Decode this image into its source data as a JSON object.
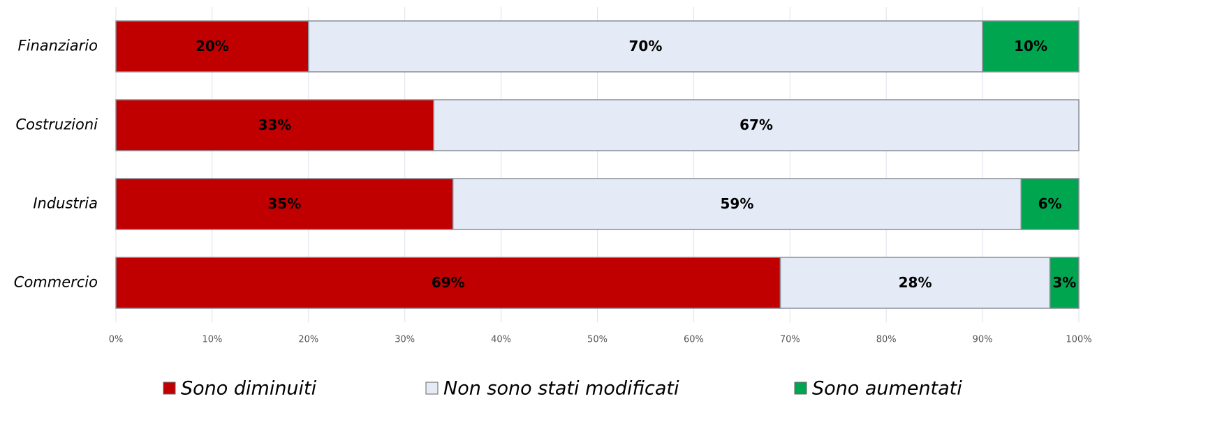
{
  "chart_data": {
    "type": "stacked_barh",
    "categories": [
      "Finanziario",
      "Costruzioni",
      "Industria",
      "Commercio"
    ],
    "series": [
      {
        "name": "Sono diminuiti",
        "color": "#c00000",
        "values": [
          20,
          33,
          35,
          69
        ],
        "value_labels": [
          "20%",
          "33%",
          "35%",
          "69%"
        ]
      },
      {
        "name": "Non sono stati modificati",
        "color": "#e4eaf6",
        "values": [
          70,
          67,
          59,
          28
        ],
        "value_labels": [
          "70%",
          "67%",
          "59%",
          "28%"
        ]
      },
      {
        "name": "Sono aumentati",
        "color": "#00a550",
        "values": [
          10,
          0,
          6,
          3
        ],
        "value_labels": [
          "10%",
          null,
          "6%",
          "3%"
        ]
      }
    ],
    "xlim": [
      0,
      100
    ],
    "xticks": [
      {
        "value": 0,
        "label": "0%"
      },
      {
        "value": 10,
        "label": "10%"
      },
      {
        "value": 20,
        "label": "20%"
      },
      {
        "value": 30,
        "label": "30%"
      },
      {
        "value": 40,
        "label": "40%"
      },
      {
        "value": 50,
        "label": "50%"
      },
      {
        "value": 60,
        "label": "60%"
      },
      {
        "value": 70,
        "label": "70%"
      },
      {
        "value": 80,
        "label": "80%"
      },
      {
        "value": 90,
        "label": "90%"
      },
      {
        "value": 100,
        "label": "100%"
      }
    ],
    "grid": true,
    "legend": "bottom"
  }
}
